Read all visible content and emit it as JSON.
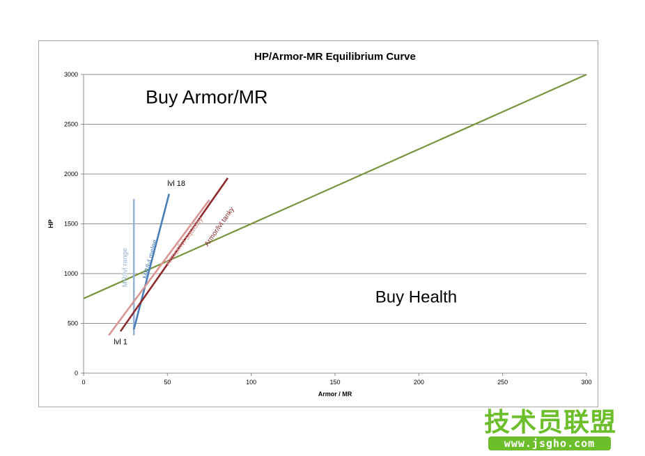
{
  "chart_data": {
    "type": "line",
    "title": "HP/Armor-MR Equilibrium Curve",
    "xlabel": "Armor / MR",
    "ylabel": "HP",
    "xlim": [
      0,
      300
    ],
    "ylim": [
      0,
      3000
    ],
    "x_ticks": [
      "0",
      "50",
      "100",
      "150",
      "200",
      "250",
      "300"
    ],
    "y_ticks": [
      "0",
      "500",
      "1000",
      "1500",
      "2000",
      "2500",
      "3000"
    ],
    "x_tick_values": [
      0,
      50,
      100,
      150,
      200,
      250,
      300
    ],
    "y_tick_values": [
      0,
      500,
      1000,
      1500,
      2000,
      2500,
      3000
    ],
    "grid": "horizontal",
    "series": [
      {
        "name": "",
        "color": "#77933c",
        "x": [
          0,
          300
        ],
        "y": [
          750,
          3000
        ]
      },
      {
        "name": "MR/lvl range",
        "color": "#95b3d7",
        "x": [
          30,
          30
        ],
        "y": [
          380,
          1750
        ]
      },
      {
        "name": "MR/lvl melee",
        "color": "#4a7ebb",
        "x": [
          30,
          51
        ],
        "y": [
          440,
          1800
        ]
      },
      {
        "name": "Armor/lvl squishy",
        "color": "#d99694",
        "x": [
          15,
          75
        ],
        "y": [
          380,
          1740
        ]
      },
      {
        "name": "Armor/lvl tanky",
        "color": "#8b2a2a",
        "x": [
          22,
          86
        ],
        "y": [
          420,
          1960
        ]
      }
    ],
    "annotations": [
      {
        "text": "Buy Armor/MR",
        "x": 37,
        "y": 2710
      },
      {
        "text": "Buy Health",
        "x": 174,
        "y": 710
      },
      {
        "text": "lvl 18",
        "x": 50,
        "y": 1880
      },
      {
        "text": "lvl 1",
        "x": 18,
        "y": 290
      }
    ]
  },
  "watermark": {
    "text_cn": "技术员联盟",
    "url": "www.jsgho.com"
  }
}
